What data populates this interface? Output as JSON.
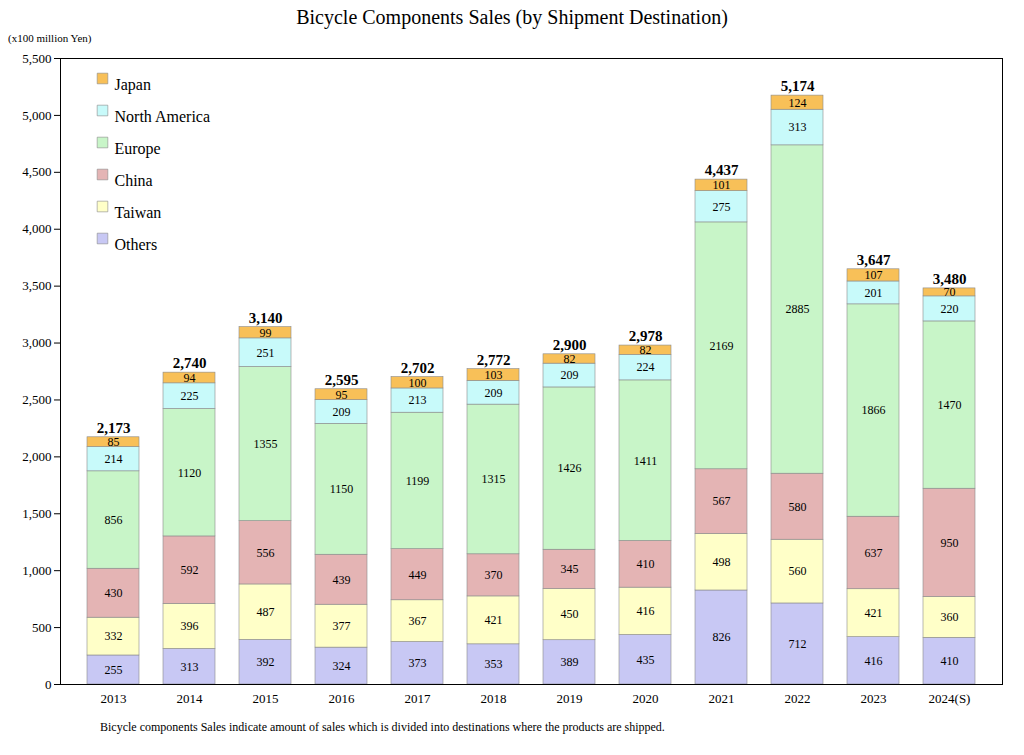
{
  "chart_data": {
    "type": "bar",
    "title": "Bicycle Components Sales (by Shipment Destination)",
    "y_label": "(x100 million Yen)",
    "caption": "Bicycle components Sales indicate amount of sales which is divided into destinations where the products are shipped.",
    "categories": [
      "2013",
      "2014",
      "2015",
      "2016",
      "2017",
      "2018",
      "2019",
      "2020",
      "2021",
      "2022",
      "2023",
      "2024(S)"
    ],
    "series": [
      {
        "name": "Others",
        "color": "#c8c8f4",
        "values": [
          255,
          313,
          392,
          324,
          373,
          353,
          389,
          435,
          826,
          712,
          416,
          410
        ]
      },
      {
        "name": "Taiwan",
        "color": "#ffffc8",
        "values": [
          332,
          396,
          487,
          377,
          367,
          421,
          450,
          416,
          498,
          560,
          421,
          360
        ]
      },
      {
        "name": "China",
        "color": "#e4b4b4",
        "values": [
          430,
          592,
          556,
          439,
          449,
          370,
          345,
          410,
          567,
          580,
          637,
          950
        ]
      },
      {
        "name": "Europe",
        "color": "#c8f5c8",
        "values": [
          856,
          1120,
          1355,
          1150,
          1199,
          1315,
          1426,
          1411,
          2169,
          2885,
          1866,
          1470
        ]
      },
      {
        "name": "North America",
        "color": "#c8fafa",
        "values": [
          214,
          225,
          251,
          209,
          213,
          209,
          209,
          224,
          275,
          313,
          201,
          220
        ]
      },
      {
        "name": "Japan",
        "color": "#f8c058",
        "values": [
          85,
          94,
          99,
          95,
          100,
          103,
          82,
          82,
          101,
          124,
          107,
          70
        ]
      }
    ],
    "totals": [
      2173,
      2740,
      3140,
      2595,
      2702,
      2772,
      2900,
      2978,
      4437,
      5174,
      3647,
      3480
    ],
    "total_labels": [
      "2,173",
      "2,740",
      "3,140",
      "2,595",
      "2,702",
      "2,772",
      "2,900",
      "2,978",
      "4,437",
      "5,174",
      "3,647",
      "3,480"
    ],
    "ylim": [
      0,
      5500
    ],
    "yticks": [
      0,
      500,
      {
        "value": 1000,
        "label": "1,000"
      },
      {
        "value": 1500,
        "label": "1,500"
      },
      {
        "value": 2000,
        "label": "2,000"
      },
      {
        "value": 2500,
        "label": "2,500"
      },
      {
        "value": 3000,
        "label": "3,000"
      },
      {
        "value": 3500,
        "label": "3,500"
      },
      {
        "value": 4000,
        "label": "4,000"
      },
      {
        "value": 4500,
        "label": "4,500"
      },
      {
        "value": 5000,
        "label": "5,000"
      },
      {
        "value": 5500,
        "label": "5,500"
      }
    ],
    "stacked": true,
    "data_labels": true,
    "grid": false,
    "legend": "top-left"
  }
}
